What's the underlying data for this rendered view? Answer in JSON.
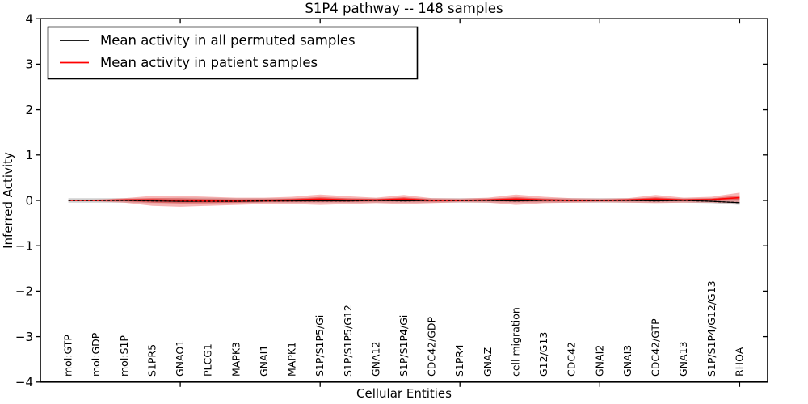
{
  "title": "S1P4 pathway -- 148 samples",
  "legend": {
    "entries": [
      {
        "label": "Mean activity in all permuted samples",
        "color": "#000000"
      },
      {
        "label": "Mean activity in patient samples",
        "color": "#ff0000"
      }
    ]
  },
  "colors": {
    "permuted_line": "#000000",
    "patient_line": "#ff0000",
    "permuted_band": "#c8c8c8",
    "patient_band": "#f05a5a"
  },
  "chart_data": {
    "type": "line",
    "title": "S1P4 pathway -- 148 samples",
    "xlabel": "Cellular Entities",
    "ylabel": "Inferred Activity",
    "xlim": [
      0,
      26
    ],
    "ylim": [
      -4,
      4
    ],
    "yticks": [
      -4,
      -3,
      -2,
      -1,
      0,
      1,
      2,
      3,
      4
    ],
    "xticks_major": [
      5,
      10,
      15,
      20,
      25
    ],
    "grid": false,
    "legend_position": "upper left",
    "categories": [
      "mol:GTP",
      "mol:GDP",
      "mol:S1P",
      "S1PR5",
      "GNAO1",
      "PLCG1",
      "MAPK3",
      "GNAI1",
      "MAPK1",
      "S1P/S1P5/Gi",
      "S1P/S1P5/G12",
      "GNA12",
      "S1P/S1P4/Gi",
      "CDC42/GDP",
      "S1PR4",
      "GNAZ",
      "cell migration",
      "G12/G13",
      "CDC42",
      "GNAI2",
      "GNAI3",
      "CDC42/GTP",
      "GNA13",
      "S1P/S1P4/G12/G13",
      "RHOA"
    ],
    "x": [
      1,
      2,
      3,
      4,
      5,
      6,
      7,
      8,
      9,
      10,
      11,
      12,
      13,
      14,
      15,
      16,
      17,
      18,
      19,
      20,
      21,
      22,
      23,
      24,
      25
    ],
    "series": [
      {
        "name": "Mean activity in all permuted samples",
        "color": "#000000",
        "style": "dashed",
        "values": [
          0,
          0,
          0,
          -0.01,
          -0.02,
          -0.02,
          -0.02,
          -0.01,
          -0.01,
          -0.01,
          -0.01,
          0,
          -0.01,
          0,
          0,
          0,
          -0.01,
          0,
          0,
          0,
          0,
          -0.01,
          0,
          -0.02,
          -0.05
        ],
        "band_upper": [
          0.05,
          0.05,
          0.05,
          0.05,
          0.06,
          0.06,
          0.05,
          0.05,
          0.05,
          0.05,
          0.05,
          0.05,
          0.05,
          0.05,
          0.05,
          0.05,
          0.05,
          0.05,
          0.05,
          0.05,
          0.05,
          0.05,
          0.05,
          0.05,
          0.05
        ],
        "band_lower": [
          -0.05,
          -0.05,
          -0.05,
          -0.06,
          -0.07,
          -0.07,
          -0.06,
          -0.05,
          -0.05,
          -0.05,
          -0.05,
          -0.05,
          -0.05,
          -0.05,
          -0.05,
          -0.05,
          -0.05,
          -0.05,
          -0.05,
          -0.05,
          -0.05,
          -0.05,
          -0.05,
          -0.06,
          -0.1
        ],
        "band_color": "#c8c8c8"
      },
      {
        "name": "Mean activity in patient samples",
        "color": "#ff0000",
        "style": "solid",
        "values": [
          0,
          0,
          0.01,
          0.01,
          0,
          -0.01,
          -0.01,
          0,
          0.01,
          0.03,
          0.01,
          0.01,
          0.03,
          0,
          0,
          0.01,
          0.03,
          0.01,
          0,
          0,
          0.01,
          0.03,
          0.01,
          0.02,
          0.06
        ],
        "band_upper": [
          0.01,
          0.02,
          0.05,
          0.1,
          0.1,
          0.08,
          0.06,
          0.06,
          0.08,
          0.13,
          0.09,
          0.06,
          0.12,
          0.05,
          0.04,
          0.06,
          0.13,
          0.08,
          0.05,
          0.04,
          0.05,
          0.12,
          0.06,
          0.08,
          0.17
        ],
        "band_lower": [
          -0.01,
          -0.02,
          -0.05,
          -0.12,
          -0.14,
          -0.12,
          -0.1,
          -0.08,
          -0.08,
          -0.1,
          -0.08,
          -0.06,
          -0.08,
          -0.06,
          -0.04,
          -0.05,
          -0.1,
          -0.06,
          -0.05,
          -0.04,
          -0.05,
          -0.06,
          -0.05,
          -0.05,
          -0.06
        ],
        "band_color": "#f05a5a"
      }
    ]
  }
}
